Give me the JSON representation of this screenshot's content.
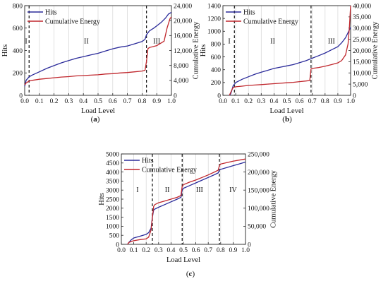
{
  "chart_data": [
    {
      "type": "line",
      "panel_label": "a",
      "xlabel": "Load Level",
      "ylabel": "Hits",
      "y2label": "Cumulative Energy",
      "xlim": [
        0.0,
        1.0
      ],
      "xticks": [
        "0.0",
        "0.1",
        "0.2",
        "0.3",
        "0.4",
        "0.5",
        "0.6",
        "0.7",
        "0.8",
        "0.9",
        "1.0"
      ],
      "ylim": [
        0,
        800
      ],
      "yticks": [
        "0",
        "200",
        "400",
        "600",
        "800"
      ],
      "y2lim": [
        0,
        24000
      ],
      "y2ticks": [
        "0",
        "4,000",
        "8,000",
        "12,000",
        "16,000",
        "20,000",
        "24,000"
      ],
      "grid": "vertical",
      "legend_position": "top-left",
      "boundaries": [
        0.03,
        0.83
      ],
      "regions": [
        {
          "label": "I",
          "x": 0.01
        },
        {
          "label": "II",
          "x": 0.42
        },
        {
          "label": "III",
          "x": 0.9
        }
      ],
      "series": [
        {
          "name": "Hits",
          "axis": "left",
          "color": "#2b2b9a",
          "points": [
            [
              0.0,
              80
            ],
            [
              0.01,
              135
            ],
            [
              0.02,
              150
            ],
            [
              0.03,
              165
            ],
            [
              0.05,
              180
            ],
            [
              0.1,
              210
            ],
            [
              0.15,
              240
            ],
            [
              0.2,
              265
            ],
            [
              0.25,
              290
            ],
            [
              0.3,
              310
            ],
            [
              0.35,
              330
            ],
            [
              0.4,
              345
            ],
            [
              0.45,
              360
            ],
            [
              0.5,
              375
            ],
            [
              0.55,
              395
            ],
            [
              0.6,
              415
            ],
            [
              0.65,
              430
            ],
            [
              0.7,
              440
            ],
            [
              0.75,
              460
            ],
            [
              0.8,
              480
            ],
            [
              0.82,
              500
            ],
            [
              0.83,
              540
            ],
            [
              0.85,
              575
            ],
            [
              0.88,
              600
            ],
            [
              0.9,
              620
            ],
            [
              0.93,
              650
            ],
            [
              0.96,
              690
            ],
            [
              0.98,
              725
            ],
            [
              1.0,
              740
            ]
          ]
        },
        {
          "name": "Cumulative Energy",
          "axis": "right",
          "color": "#c0272d",
          "points": [
            [
              0.0,
              2800
            ],
            [
              0.01,
              3300
            ],
            [
              0.03,
              3800
            ],
            [
              0.05,
              4000
            ],
            [
              0.1,
              4300
            ],
            [
              0.15,
              4500
            ],
            [
              0.2,
              4700
            ],
            [
              0.25,
              4900
            ],
            [
              0.3,
              5000
            ],
            [
              0.35,
              5200
            ],
            [
              0.4,
              5300
            ],
            [
              0.45,
              5400
            ],
            [
              0.5,
              5500
            ],
            [
              0.55,
              5700
            ],
            [
              0.6,
              5800
            ],
            [
              0.65,
              6000
            ],
            [
              0.7,
              6100
            ],
            [
              0.75,
              6300
            ],
            [
              0.8,
              6500
            ],
            [
              0.82,
              6700
            ],
            [
              0.83,
              9000
            ],
            [
              0.84,
              12500
            ],
            [
              0.85,
              12800
            ],
            [
              0.9,
              13300
            ],
            [
              0.95,
              14500
            ],
            [
              0.97,
              18000
            ],
            [
              0.99,
              20500
            ],
            [
              1.0,
              21000
            ]
          ]
        }
      ]
    },
    {
      "type": "line",
      "panel_label": "b",
      "xlabel": "Load Level",
      "ylabel": "Hits",
      "y2label": "Cumulative Energy",
      "xlim": [
        0.0,
        1.0
      ],
      "xticks": [
        "0.0",
        "0.1",
        "0.2",
        "0.3",
        "0.4",
        "0.5",
        "0.6",
        "0.7",
        "0.8",
        "0.9",
        "1.0"
      ],
      "ylim": [
        0,
        1400
      ],
      "yticks": [
        "0",
        "200",
        "400",
        "600",
        "800",
        "1000",
        "1200",
        "1400"
      ],
      "y2lim": [
        0,
        40000
      ],
      "y2ticks": [
        "0",
        "5,000",
        "10,000",
        "15,000",
        "20,000",
        "25,000",
        "30,000",
        "35,000",
        "40,000"
      ],
      "grid": "vertical",
      "legend_position": "top-left",
      "boundaries": [
        0.09,
        0.69
      ],
      "regions": [
        {
          "label": "I",
          "x": 0.05
        },
        {
          "label": "II",
          "x": 0.39
        },
        {
          "label": "III",
          "x": 0.85
        }
      ],
      "series": [
        {
          "name": "Hits",
          "axis": "left",
          "color": "#2b2b9a",
          "points": [
            [
              0.05,
              0
            ],
            [
              0.06,
              20
            ],
            [
              0.07,
              80
            ],
            [
              0.08,
              150
            ],
            [
              0.1,
              200
            ],
            [
              0.15,
              250
            ],
            [
              0.2,
              290
            ],
            [
              0.25,
              330
            ],
            [
              0.3,
              360
            ],
            [
              0.35,
              390
            ],
            [
              0.4,
              420
            ],
            [
              0.45,
              440
            ],
            [
              0.5,
              460
            ],
            [
              0.55,
              480
            ],
            [
              0.6,
              510
            ],
            [
              0.65,
              540
            ],
            [
              0.7,
              580
            ],
            [
              0.75,
              620
            ],
            [
              0.8,
              660
            ],
            [
              0.85,
              710
            ],
            [
              0.9,
              760
            ],
            [
              0.93,
              820
            ],
            [
              0.96,
              900
            ],
            [
              0.98,
              980
            ],
            [
              1.0,
              1060
            ]
          ]
        },
        {
          "name": "Cumulative Energy",
          "axis": "right",
          "color": "#c0272d",
          "points": [
            [
              0.05,
              0
            ],
            [
              0.06,
              1200
            ],
            [
              0.07,
              2500
            ],
            [
              0.08,
              3500
            ],
            [
              0.1,
              3800
            ],
            [
              0.15,
              4100
            ],
            [
              0.2,
              4400
            ],
            [
              0.25,
              4600
            ],
            [
              0.3,
              4800
            ],
            [
              0.35,
              5000
            ],
            [
              0.4,
              5200
            ],
            [
              0.45,
              5400
            ],
            [
              0.5,
              5600
            ],
            [
              0.55,
              5800
            ],
            [
              0.6,
              6100
            ],
            [
              0.65,
              6400
            ],
            [
              0.68,
              6600
            ],
            [
              0.69,
              11800
            ],
            [
              0.7,
              12000
            ],
            [
              0.75,
              12400
            ],
            [
              0.8,
              13000
            ],
            [
              0.85,
              13700
            ],
            [
              0.9,
              14500
            ],
            [
              0.93,
              15500
            ],
            [
              0.96,
              18000
            ],
            [
              0.98,
              23000
            ],
            [
              0.99,
              30000
            ],
            [
              1.0,
              40000
            ]
          ]
        }
      ]
    },
    {
      "type": "line",
      "panel_label": "c",
      "xlabel": "Load Level",
      "ylabel": "Hits",
      "y2label": "Cumulative Energy",
      "xlim": [
        0.0,
        1.0
      ],
      "xticks": [
        "0.0",
        "0.1",
        "0.2",
        "0.3",
        "0.4",
        "0.5",
        "0.6",
        "0.7",
        "0.8",
        "0.9",
        "1.0"
      ],
      "ylim": [
        0,
        5000
      ],
      "yticks": [
        "0",
        "500",
        "1000",
        "1500",
        "2000",
        "2500",
        "3000",
        "3500",
        "4000",
        "4500",
        "5000"
      ],
      "y2lim": [
        0,
        250000
      ],
      "y2ticks": [
        "0",
        "50,000",
        "100,000",
        "150,000",
        "200,000",
        "250,000"
      ],
      "grid": "vertical",
      "legend_position": "top-left",
      "boundaries": [
        0.25,
        0.49,
        0.79
      ],
      "regions": [
        {
          "label": "I",
          "x": 0.13
        },
        {
          "label": "II",
          "x": 0.37
        },
        {
          "label": "III",
          "x": 0.63
        },
        {
          "label": "IV",
          "x": 0.9
        }
      ],
      "series": [
        {
          "name": "Hits",
          "axis": "left",
          "color": "#2b2b9a",
          "points": [
            [
              0.05,
              0
            ],
            [
              0.06,
              100
            ],
            [
              0.08,
              250
            ],
            [
              0.1,
              350
            ],
            [
              0.15,
              450
            ],
            [
              0.2,
              550
            ],
            [
              0.22,
              650
            ],
            [
              0.24,
              900
            ],
            [
              0.25,
              1500
            ],
            [
              0.26,
              1900
            ],
            [
              0.27,
              1950
            ],
            [
              0.3,
              2050
            ],
            [
              0.35,
              2200
            ],
            [
              0.4,
              2350
            ],
            [
              0.45,
              2500
            ],
            [
              0.48,
              2600
            ],
            [
              0.49,
              3000
            ],
            [
              0.5,
              3100
            ],
            [
              0.55,
              3250
            ],
            [
              0.6,
              3400
            ],
            [
              0.65,
              3550
            ],
            [
              0.7,
              3700
            ],
            [
              0.75,
              3850
            ],
            [
              0.78,
              3950
            ],
            [
              0.79,
              4100
            ],
            [
              0.8,
              4150
            ],
            [
              0.85,
              4250
            ],
            [
              0.9,
              4350
            ],
            [
              0.95,
              4450
            ],
            [
              1.0,
              4550
            ]
          ]
        },
        {
          "name": "Cumulative Energy",
          "axis": "right",
          "color": "#c0272d",
          "points": [
            [
              0.05,
              0
            ],
            [
              0.06,
              5000
            ],
            [
              0.08,
              8000
            ],
            [
              0.1,
              10000
            ],
            [
              0.15,
              13000
            ],
            [
              0.2,
              15000
            ],
            [
              0.22,
              20000
            ],
            [
              0.24,
              40000
            ],
            [
              0.25,
              75000
            ],
            [
              0.26,
              105000
            ],
            [
              0.27,
              110000
            ],
            [
              0.3,
              115000
            ],
            [
              0.35,
              120000
            ],
            [
              0.4,
              125000
            ],
            [
              0.45,
              130000
            ],
            [
              0.48,
              135000
            ],
            [
              0.49,
              160000
            ],
            [
              0.5,
              165000
            ],
            [
              0.55,
              172000
            ],
            [
              0.6,
              178000
            ],
            [
              0.65,
              185000
            ],
            [
              0.7,
              192000
            ],
            [
              0.75,
              200000
            ],
            [
              0.78,
              205000
            ],
            [
              0.79,
              218000
            ],
            [
              0.8,
              222000
            ],
            [
              0.85,
              226000
            ],
            [
              0.9,
              230000
            ],
            [
              0.95,
              233000
            ],
            [
              1.0,
              236000
            ]
          ]
        }
      ]
    }
  ]
}
